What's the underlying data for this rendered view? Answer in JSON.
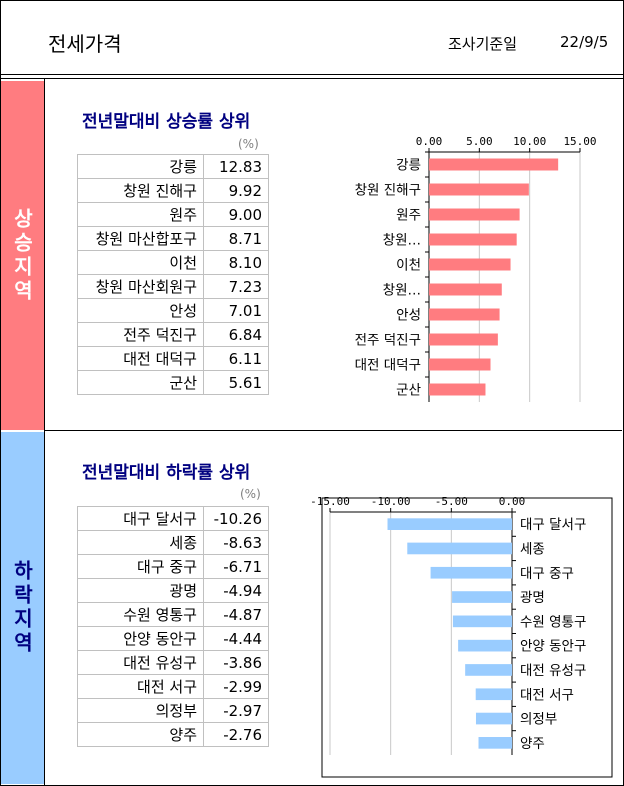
{
  "header": {
    "title": "전세가격",
    "basis_label": "조사기준일",
    "date": "22/9/5"
  },
  "bands": {
    "up": "상승지역",
    "down": "하락지역"
  },
  "rise": {
    "title": "전년말대비 상승률 상위",
    "unit": "(%)",
    "rows": [
      {
        "region": "강릉",
        "value": "12.83"
      },
      {
        "region": "창원 진해구",
        "value": "9.92"
      },
      {
        "region": "원주",
        "value": "9.00"
      },
      {
        "region": "창원 마산합포구",
        "value": "8.71"
      },
      {
        "region": "이천",
        "value": "8.10"
      },
      {
        "region": "창원 마산회원구",
        "value": "7.23"
      },
      {
        "region": "안성",
        "value": "7.01"
      },
      {
        "region": "전주 덕진구",
        "value": "6.84"
      },
      {
        "region": "대전 대덕구",
        "value": "6.11"
      },
      {
        "region": "군산",
        "value": "5.61"
      }
    ]
  },
  "fall": {
    "title": "전년말대비 하락률 상위",
    "unit": "(%)",
    "rows": [
      {
        "region": "대구 달서구",
        "value": "-10.26"
      },
      {
        "region": "세종",
        "value": "-8.63"
      },
      {
        "region": "대구 중구",
        "value": "-6.71"
      },
      {
        "region": "광명",
        "value": "-4.94"
      },
      {
        "region": "수원 영통구",
        "value": "-4.87"
      },
      {
        "region": "안양 동안구",
        "value": "-4.44"
      },
      {
        "region": "대전 유성구",
        "value": "-3.86"
      },
      {
        "region": "대전 서구",
        "value": "-2.99"
      },
      {
        "region": "의정부",
        "value": "-2.97"
      },
      {
        "region": "양주",
        "value": "-2.76"
      }
    ]
  },
  "chart_data": [
    {
      "type": "bar",
      "orientation": "horizontal",
      "categories": [
        "강릉",
        "창원 진해구",
        "원주",
        "창원…",
        "이천",
        "창원…",
        "안성",
        "전주 덕진구",
        "대전 대덕구",
        "군산"
      ],
      "values": [
        12.83,
        9.92,
        9.0,
        8.71,
        8.1,
        7.23,
        7.01,
        6.84,
        6.11,
        5.61
      ],
      "xlim": [
        0,
        15
      ],
      "ticks": [
        "0.00",
        "5.00",
        "10.00",
        "15.00"
      ],
      "tick_values": [
        0,
        5,
        10,
        15
      ],
      "axis_position": "top",
      "color": "#ff7c80",
      "grid": true
    },
    {
      "type": "bar",
      "orientation": "horizontal",
      "categories": [
        "대구 달서구",
        "세종",
        "대구 중구",
        "광명",
        "수원 영통구",
        "안양 동안구",
        "대전 유성구",
        "대전 서구",
        "의정부",
        "양주"
      ],
      "values": [
        -10.26,
        -8.63,
        -6.71,
        -4.94,
        -4.87,
        -4.44,
        -3.86,
        -2.99,
        -2.97,
        -2.76
      ],
      "xlim": [
        -15,
        0
      ],
      "ticks": [
        "-15.00",
        "-10.00",
        "-5.00",
        "0.00"
      ],
      "tick_values": [
        -15,
        -10,
        -5,
        0
      ],
      "axis_position": "top",
      "color": "#99ccff",
      "grid": true
    }
  ]
}
